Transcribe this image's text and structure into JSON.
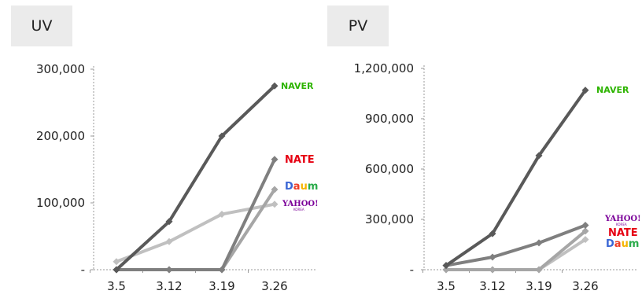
{
  "chart_data": [
    {
      "type": "line",
      "title": "UV",
      "categories": [
        "3.5",
        "3.12",
        "3.19",
        "3.26"
      ],
      "yticks": [
        "-",
        "100,000",
        "200,000",
        "300,000"
      ],
      "ylim": [
        0,
        300000
      ],
      "series": [
        {
          "name": "NAVER",
          "values": [
            0,
            72000,
            200000,
            275000
          ],
          "color": "#595959"
        },
        {
          "name": "NATE",
          "values": [
            0,
            0,
            0,
            165000
          ],
          "color": "#7f7f7f"
        },
        {
          "name": "Daum",
          "values": [
            0,
            0,
            0,
            120000
          ],
          "color": "#a6a6a6"
        },
        {
          "name": "YAHOO!",
          "values": [
            12000,
            42000,
            83000,
            98000
          ],
          "color": "#c0c0c0"
        }
      ]
    },
    {
      "type": "line",
      "title": "PV",
      "categories": [
        "3.5",
        "3.12",
        "3.19",
        "3.26"
      ],
      "yticks": [
        "-",
        "300,000",
        "600,000",
        "900,000",
        "1,200,000"
      ],
      "ylim": [
        0,
        1200000
      ],
      "series": [
        {
          "name": "NAVER",
          "values": [
            25000,
            215000,
            680000,
            1070000
          ],
          "color": "#595959"
        },
        {
          "name": "YAHOO!",
          "values": [
            25000,
            75000,
            160000,
            265000
          ],
          "color": "#7f7f7f"
        },
        {
          "name": "NATE",
          "values": [
            0,
            0,
            0,
            230000
          ],
          "color": "#a6a6a6"
        },
        {
          "name": "Daum",
          "values": [
            0,
            0,
            0,
            180000
          ],
          "color": "#c0c0c0"
        }
      ]
    }
  ],
  "logos": {
    "naver": {
      "text": "NAVER",
      "color": "#2db400"
    },
    "nate": {
      "text": "NATE",
      "color": "#e60012"
    },
    "daum": {
      "text": "Daum",
      "colors": [
        "#3a66d5",
        "#ee3b24",
        "#f5b400",
        "#2aab4a"
      ]
    },
    "yahoo": {
      "text": "YAHOO!",
      "sub": "KOREA",
      "color": "#7b0099"
    }
  }
}
